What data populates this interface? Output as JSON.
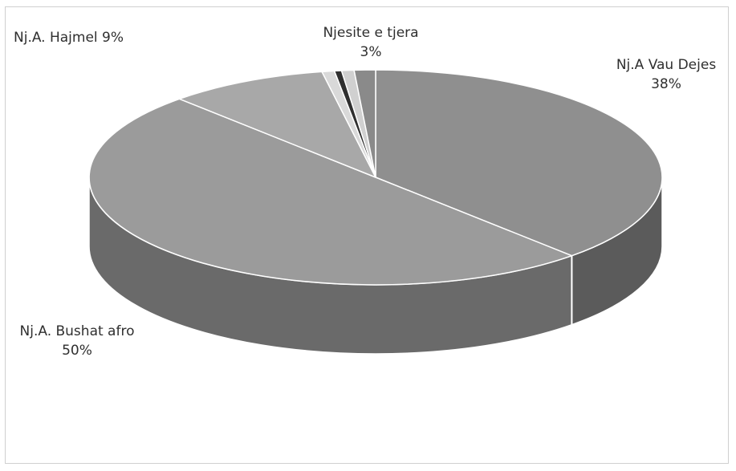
{
  "chart_data": {
    "type": "pie",
    "title": "",
    "slices": [
      {
        "label": "Nj.A Vau Dejes",
        "value_percent": 38,
        "display_value": "38%",
        "color": "#8f8f8f",
        "side_color": "#5b5b5b"
      },
      {
        "label": "Nj.A. Bushat afro",
        "value_percent": 50,
        "display_value": "50%",
        "color": "#9b9b9b",
        "side_color": "#6a6a6a"
      },
      {
        "label": "Nj.A. Hajmel 9%",
        "value_percent": 9,
        "display_value": "",
        "color": "#a8a8a8",
        "side_color": "#777777"
      },
      {
        "label": "Njesite e tjera",
        "value_percent": 3,
        "display_value": "3%",
        "color": "#bdbdbd",
        "side_color": "#8a8a8a",
        "components_percent": [
          0.7,
          0.4,
          0.7,
          1.2
        ]
      }
    ],
    "style": "3d-pie",
    "legend": "none"
  }
}
